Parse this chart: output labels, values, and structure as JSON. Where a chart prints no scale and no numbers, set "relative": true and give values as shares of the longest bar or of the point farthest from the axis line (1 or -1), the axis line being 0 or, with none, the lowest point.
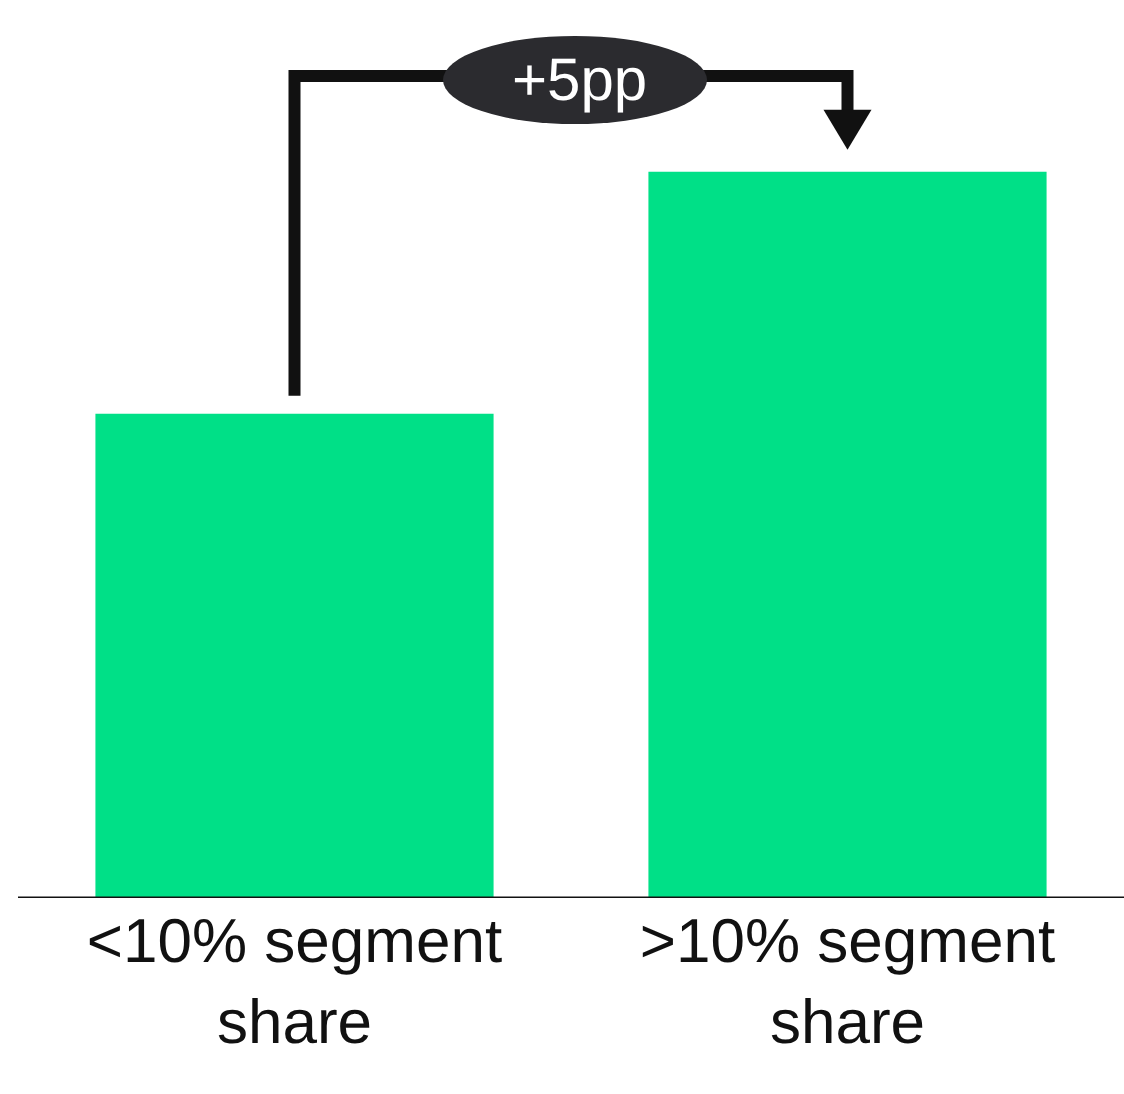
{
  "chart_data": {
    "type": "bar",
    "relative": true,
    "categories": [
      "<10% segment share",
      ">10% segment share"
    ],
    "values": [
      0.667,
      1
    ],
    "color": "#00e087",
    "annotations": [
      "+5pp"
    ]
  }
}
